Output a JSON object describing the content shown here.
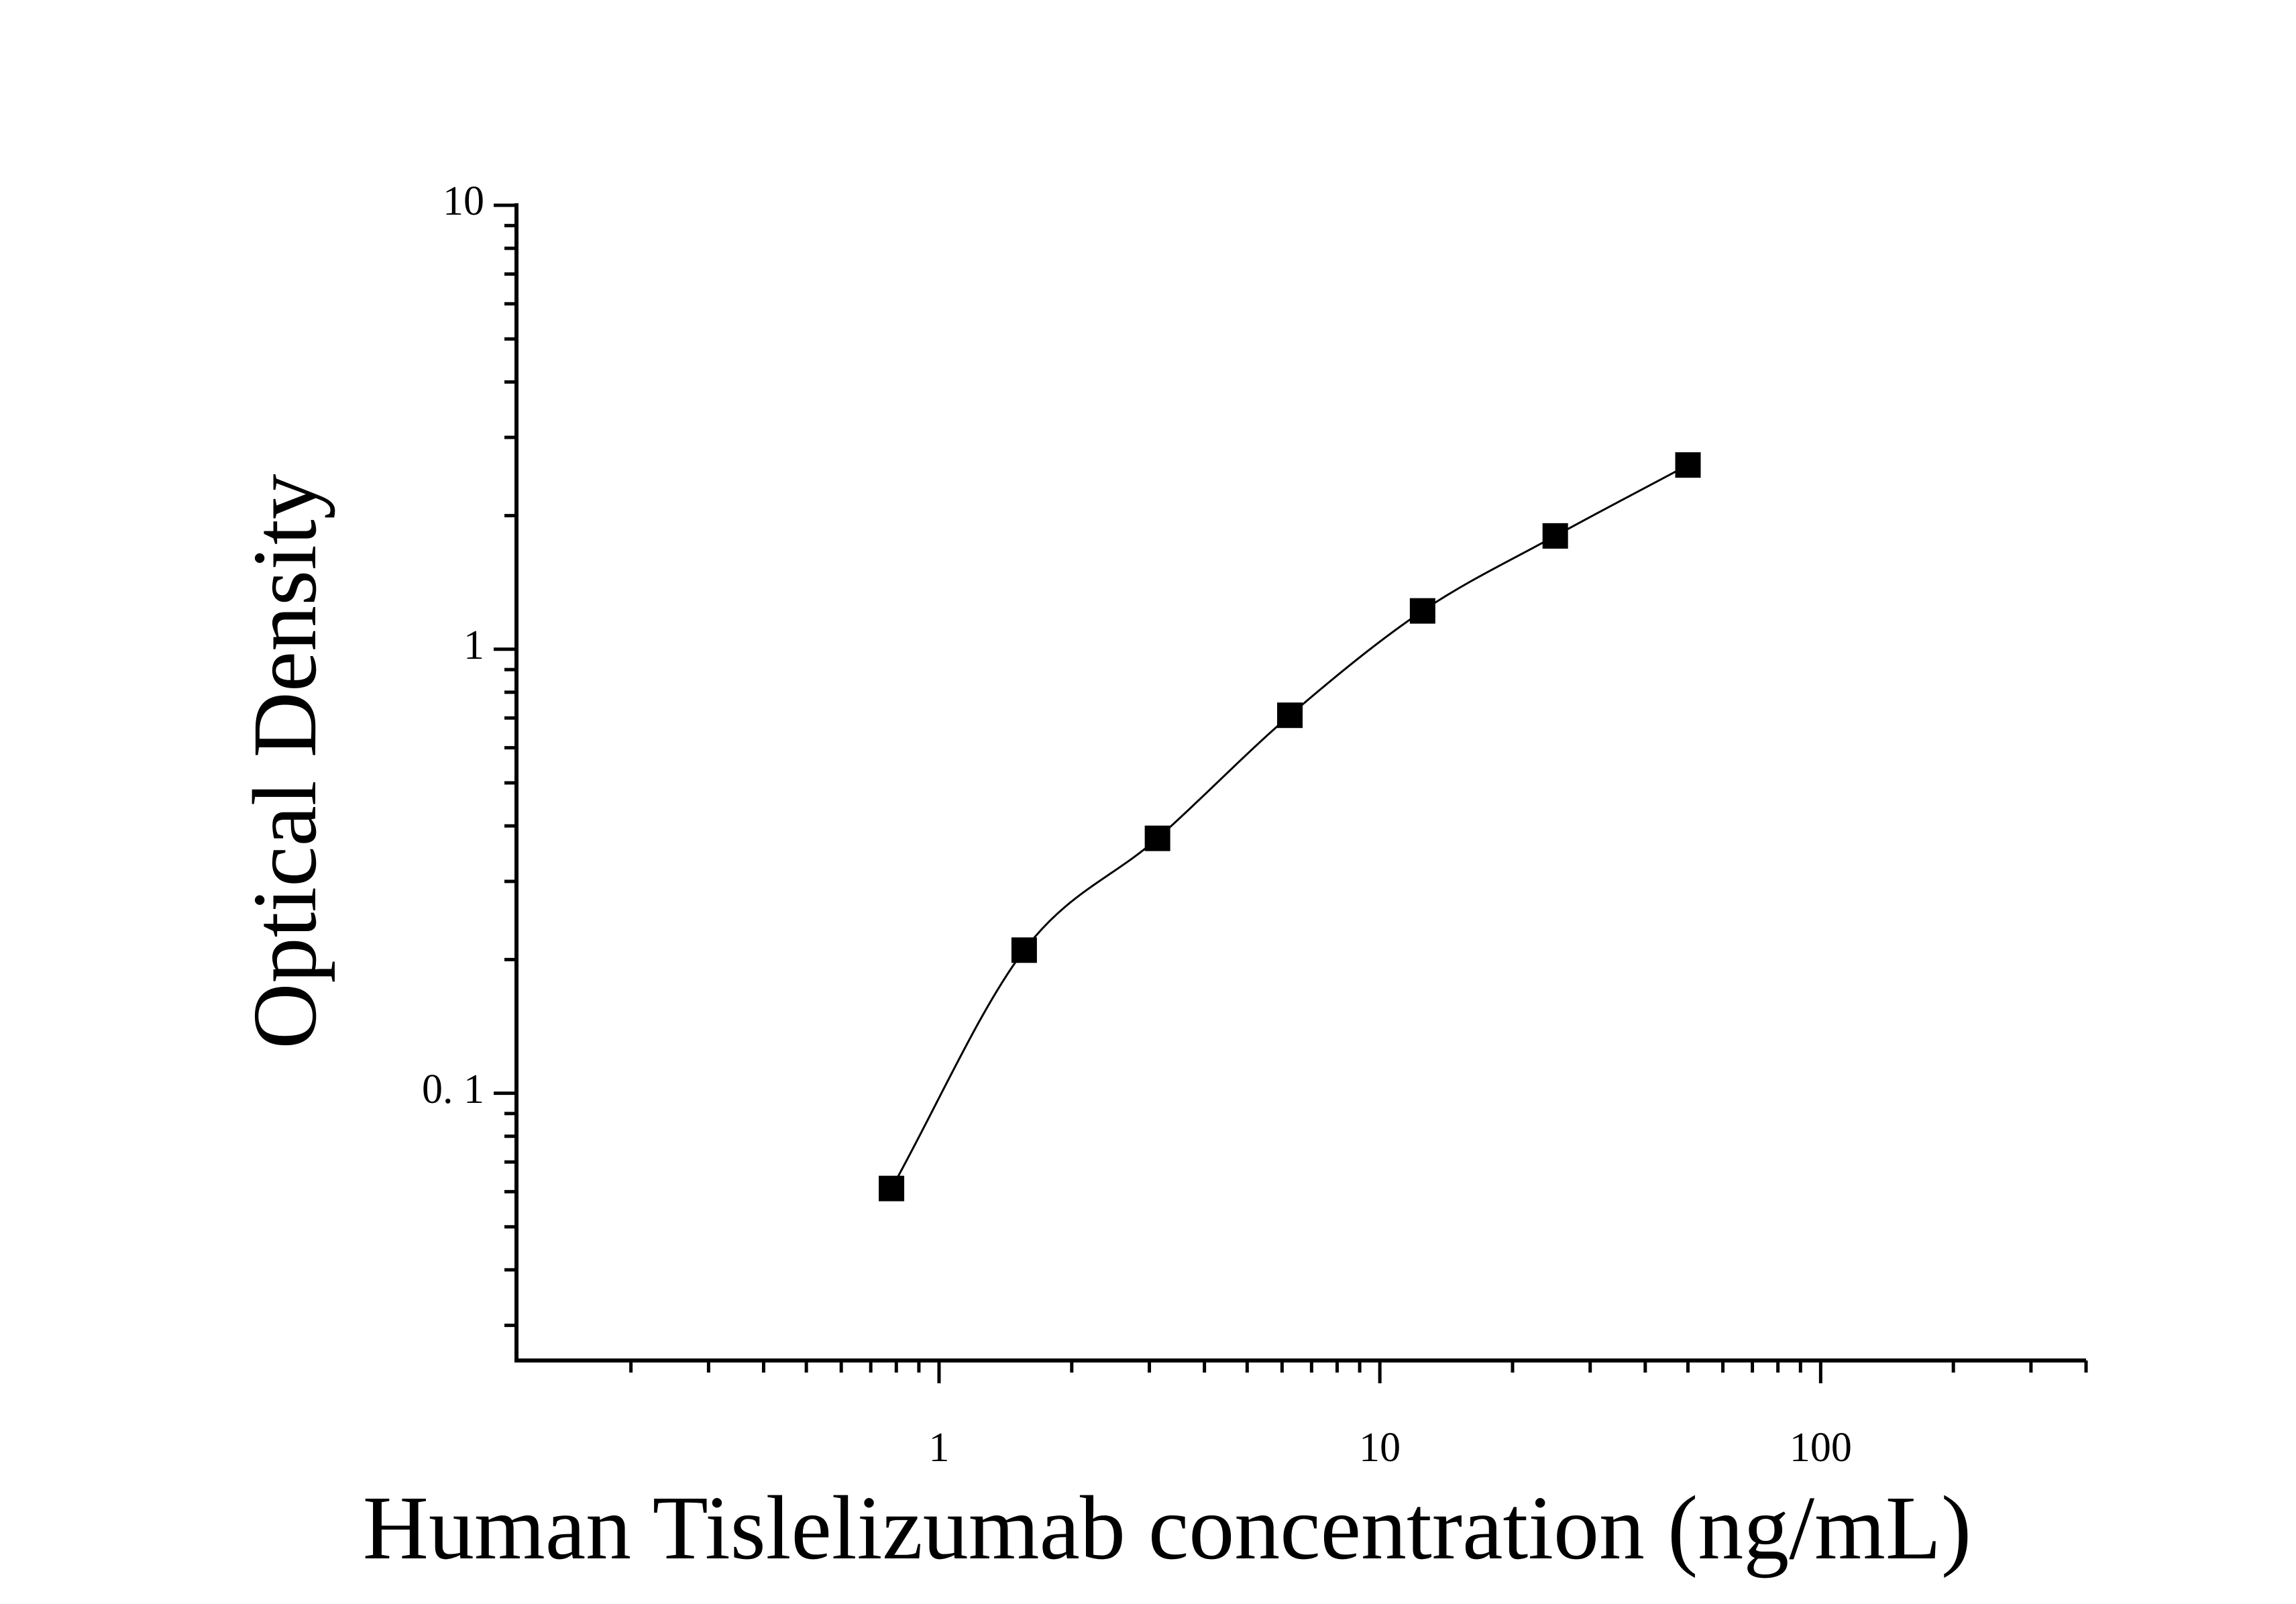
{
  "chart_data": {
    "type": "scatter",
    "title": "",
    "xlabel": "Human Tislelizumab concentration (ng/mL)",
    "ylabel": "Optical Density",
    "xscale": "log",
    "yscale": "log",
    "xlim": [
      0.11,
      400
    ],
    "ylim": [
      0.025,
      10
    ],
    "x_tick_labels": [
      "1",
      "10",
      "100"
    ],
    "y_tick_labels": [
      "0. 1",
      "1",
      "10"
    ],
    "grid": false,
    "legend": "none",
    "marker": "filled-square",
    "fit_curve": true,
    "series": [
      {
        "x": [
          0.78,
          1.56,
          3.13,
          6.25,
          12.5,
          25,
          50
        ],
        "y": [
          0.061,
          0.21,
          0.375,
          0.71,
          1.22,
          1.8,
          2.6
        ]
      }
    ]
  }
}
